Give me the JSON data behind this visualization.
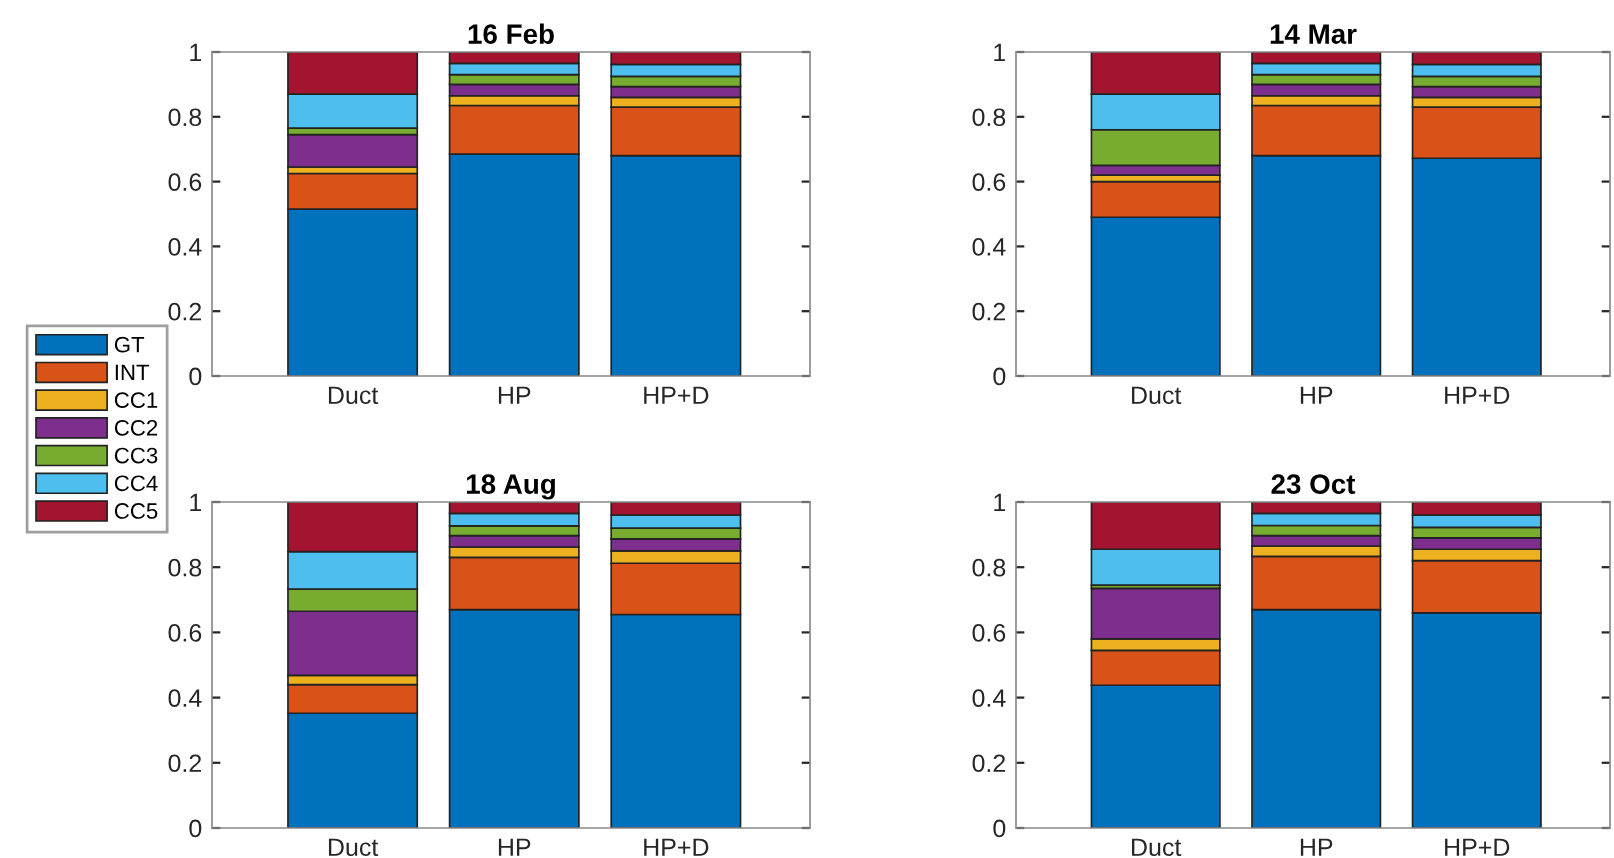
{
  "chart_data": [
    {
      "type": "bar",
      "title": "16 Feb",
      "stacked": true,
      "legend": "left",
      "categories": [
        "Duct",
        "HP",
        "HP+D"
      ],
      "ylim": [
        0,
        1
      ],
      "yticks": [
        0,
        0.2,
        0.4,
        0.6,
        0.8,
        1
      ],
      "series": [
        {
          "name": "GT",
          "color": "#0072bd",
          "values": [
            0.515,
            0.685,
            0.68
          ]
        },
        {
          "name": "INT",
          "color": "#d95319",
          "values": [
            0.11,
            0.15,
            0.15
          ]
        },
        {
          "name": "CC1",
          "color": "#edb120",
          "values": [
            0.02,
            0.03,
            0.03
          ]
        },
        {
          "name": "CC2",
          "color": "#7e2f8e",
          "values": [
            0.1,
            0.035,
            0.033
          ]
        },
        {
          "name": "CC3",
          "color": "#77ac30",
          "values": [
            0.02,
            0.03,
            0.032
          ]
        },
        {
          "name": "CC4",
          "color": "#4dbeee",
          "values": [
            0.105,
            0.035,
            0.037
          ]
        },
        {
          "name": "CC5",
          "color": "#a2142f",
          "values": [
            0.13,
            0.035,
            0.038
          ]
        }
      ]
    },
    {
      "type": "bar",
      "title": "14 Mar",
      "stacked": true,
      "categories": [
        "Duct",
        "HP",
        "HP+D"
      ],
      "ylim": [
        0,
        1
      ],
      "yticks": [
        0,
        0.2,
        0.4,
        0.6,
        0.8,
        1
      ],
      "series": [
        {
          "color": "#0072bd",
          "values": [
            0.49,
            0.68,
            0.672
          ]
        },
        {
          "color": "#d95319",
          "values": [
            0.11,
            0.155,
            0.158
          ]
        },
        {
          "color": "#edb120",
          "values": [
            0.02,
            0.03,
            0.03
          ]
        },
        {
          "color": "#7e2f8e",
          "values": [
            0.03,
            0.035,
            0.033
          ]
        },
        {
          "color": "#77ac30",
          "values": [
            0.11,
            0.03,
            0.032
          ]
        },
        {
          "color": "#4dbeee",
          "values": [
            0.11,
            0.035,
            0.037
          ]
        },
        {
          "color": "#a2142f",
          "values": [
            0.13,
            0.035,
            0.038
          ]
        }
      ]
    },
    {
      "type": "bar",
      "title": "18 Aug",
      "stacked": true,
      "categories": [
        "Duct",
        "HP",
        "HP+D"
      ],
      "ylim": [
        0,
        1
      ],
      "yticks": [
        0,
        0.2,
        0.4,
        0.6,
        0.8,
        1
      ],
      "series": [
        {
          "color": "#0072bd",
          "values": [
            0.352,
            0.67,
            0.655
          ]
        },
        {
          "color": "#d95319",
          "values": [
            0.088,
            0.16,
            0.157
          ]
        },
        {
          "color": "#edb120",
          "values": [
            0.028,
            0.032,
            0.038
          ]
        },
        {
          "color": "#7e2f8e",
          "values": [
            0.197,
            0.035,
            0.037
          ]
        },
        {
          "color": "#77ac30",
          "values": [
            0.068,
            0.03,
            0.033
          ]
        },
        {
          "color": "#4dbeee",
          "values": [
            0.115,
            0.038,
            0.04
          ]
        },
        {
          "color": "#a2142f",
          "values": [
            0.152,
            0.035,
            0.04
          ]
        }
      ]
    },
    {
      "type": "bar",
      "title": "23 Oct",
      "stacked": true,
      "categories": [
        "Duct",
        "HP",
        "HP+D"
      ],
      "ylim": [
        0,
        1
      ],
      "yticks": [
        0,
        0.2,
        0.4,
        0.6,
        0.8,
        1
      ],
      "series": [
        {
          "color": "#0072bd",
          "values": [
            0.438,
            0.67,
            0.66
          ]
        },
        {
          "color": "#d95319",
          "values": [
            0.107,
            0.163,
            0.16
          ]
        },
        {
          "color": "#edb120",
          "values": [
            0.035,
            0.032,
            0.035
          ]
        },
        {
          "color": "#7e2f8e",
          "values": [
            0.155,
            0.032,
            0.035
          ]
        },
        {
          "color": "#77ac30",
          "values": [
            0.01,
            0.031,
            0.032
          ]
        },
        {
          "color": "#4dbeee",
          "values": [
            0.11,
            0.037,
            0.038
          ]
        },
        {
          "color": "#a2142f",
          "values": [
            0.145,
            0.035,
            0.04
          ]
        }
      ]
    }
  ]
}
